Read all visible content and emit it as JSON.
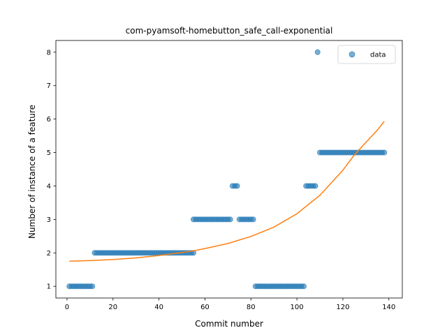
{
  "chart_data": {
    "type": "scatter",
    "title": "com-pyamsoft-homebutton_safe_call-exponential",
    "xlabel": "Commit number",
    "ylabel": "Number of instance of a feature",
    "xlim": [
      -4.85,
      145.85
    ],
    "ylim": [
      0.65,
      8.35
    ],
    "xticks": [
      0,
      20,
      40,
      60,
      80,
      100,
      120,
      140
    ],
    "yticks": [
      1,
      2,
      3,
      4,
      5,
      6,
      7,
      8
    ],
    "legend": {
      "placement": "top-right",
      "entries": [
        "data"
      ]
    },
    "colors": {
      "data": "#1f77b4",
      "fit": "#ff7f0e"
    },
    "series": [
      {
        "name": "data",
        "kind": "scatter",
        "points": [
          [
            1,
            1
          ],
          [
            2,
            1
          ],
          [
            3,
            1
          ],
          [
            4,
            1
          ],
          [
            5,
            1
          ],
          [
            6,
            1
          ],
          [
            7,
            1
          ],
          [
            8,
            1
          ],
          [
            9,
            1
          ],
          [
            10,
            1
          ],
          [
            11,
            1
          ],
          [
            12,
            2
          ],
          [
            13,
            2
          ],
          [
            14,
            2
          ],
          [
            15,
            2
          ],
          [
            16,
            2
          ],
          [
            17,
            2
          ],
          [
            18,
            2
          ],
          [
            19,
            2
          ],
          [
            20,
            2
          ],
          [
            21,
            2
          ],
          [
            22,
            2
          ],
          [
            23,
            2
          ],
          [
            24,
            2
          ],
          [
            25,
            2
          ],
          [
            26,
            2
          ],
          [
            27,
            2
          ],
          [
            28,
            2
          ],
          [
            29,
            2
          ],
          [
            30,
            2
          ],
          [
            31,
            2
          ],
          [
            32,
            2
          ],
          [
            33,
            2
          ],
          [
            34,
            2
          ],
          [
            35,
            2
          ],
          [
            36,
            2
          ],
          [
            37,
            2
          ],
          [
            38,
            2
          ],
          [
            39,
            2
          ],
          [
            40,
            2
          ],
          [
            41,
            2
          ],
          [
            42,
            2
          ],
          [
            43,
            2
          ],
          [
            44,
            2
          ],
          [
            45,
            2
          ],
          [
            46,
            2
          ],
          [
            47,
            2
          ],
          [
            48,
            2
          ],
          [
            49,
            2
          ],
          [
            50,
            2
          ],
          [
            51,
            2
          ],
          [
            52,
            2
          ],
          [
            53,
            2
          ],
          [
            54,
            2
          ],
          [
            55,
            2
          ],
          [
            55,
            3
          ],
          [
            56,
            3
          ],
          [
            57,
            3
          ],
          [
            58,
            3
          ],
          [
            59,
            3
          ],
          [
            60,
            3
          ],
          [
            61,
            3
          ],
          [
            62,
            3
          ],
          [
            63,
            3
          ],
          [
            64,
            3
          ],
          [
            65,
            3
          ],
          [
            66,
            3
          ],
          [
            67,
            3
          ],
          [
            68,
            3
          ],
          [
            69,
            3
          ],
          [
            70,
            3
          ],
          [
            71,
            3
          ],
          [
            72,
            4
          ],
          [
            73,
            4
          ],
          [
            74,
            4
          ],
          [
            75,
            3
          ],
          [
            76,
            3
          ],
          [
            77,
            3
          ],
          [
            78,
            3
          ],
          [
            79,
            3
          ],
          [
            80,
            3
          ],
          [
            81,
            3
          ],
          [
            82,
            1
          ],
          [
            83,
            1
          ],
          [
            84,
            1
          ],
          [
            85,
            1
          ],
          [
            86,
            1
          ],
          [
            87,
            1
          ],
          [
            88,
            1
          ],
          [
            89,
            1
          ],
          [
            90,
            1
          ],
          [
            91,
            1
          ],
          [
            92,
            1
          ],
          [
            93,
            1
          ],
          [
            94,
            1
          ],
          [
            95,
            1
          ],
          [
            96,
            1
          ],
          [
            97,
            1
          ],
          [
            98,
            1
          ],
          [
            99,
            1
          ],
          [
            100,
            1
          ],
          [
            101,
            1
          ],
          [
            102,
            1
          ],
          [
            103,
            1
          ],
          [
            104,
            4
          ],
          [
            105,
            4
          ],
          [
            106,
            4
          ],
          [
            107,
            4
          ],
          [
            108,
            4
          ],
          [
            109,
            8
          ],
          [
            110,
            5
          ],
          [
            111,
            5
          ],
          [
            112,
            5
          ],
          [
            113,
            5
          ],
          [
            114,
            5
          ],
          [
            115,
            5
          ],
          [
            116,
            5
          ],
          [
            117,
            5
          ],
          [
            118,
            5
          ],
          [
            119,
            5
          ],
          [
            120,
            5
          ],
          [
            121,
            5
          ],
          [
            122,
            5
          ],
          [
            123,
            5
          ],
          [
            124,
            5
          ],
          [
            125,
            5
          ],
          [
            126,
            5
          ],
          [
            127,
            5
          ],
          [
            128,
            5
          ],
          [
            129,
            5
          ],
          [
            130,
            5
          ],
          [
            131,
            5
          ],
          [
            132,
            5
          ],
          [
            133,
            5
          ],
          [
            134,
            5
          ],
          [
            135,
            5
          ],
          [
            136,
            5
          ],
          [
            137,
            5
          ],
          [
            138,
            5
          ]
        ]
      },
      {
        "name": "",
        "kind": "line",
        "points": [
          [
            1,
            1.75
          ],
          [
            10,
            1.77
          ],
          [
            20,
            1.8
          ],
          [
            30,
            1.85
          ],
          [
            40,
            1.92
          ],
          [
            50,
            2.01
          ],
          [
            55,
            2.06
          ],
          [
            60,
            2.13
          ],
          [
            70,
            2.28
          ],
          [
            80,
            2.49
          ],
          [
            90,
            2.77
          ],
          [
            100,
            3.17
          ],
          [
            110,
            3.72
          ],
          [
            120,
            4.47
          ],
          [
            125,
            4.93
          ],
          [
            130,
            5.3
          ],
          [
            135,
            5.67
          ],
          [
            138,
            5.93
          ]
        ]
      }
    ]
  }
}
